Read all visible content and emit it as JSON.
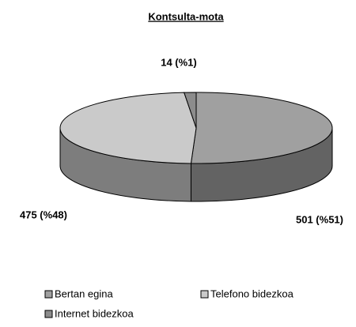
{
  "chart_data": {
    "type": "pie",
    "title": "Kontsulta-mota",
    "categories": [
      "Bertan egina",
      "Telefono bidezkoa",
      "Internet bidezkoa"
    ],
    "values": [
      501,
      475,
      14
    ],
    "value_labels": [
      "501 (%51)",
      "475 (%48)",
      "14 (%1)"
    ],
    "colors": [
      "#a0a0a0",
      "#cacaca",
      "#8c8c8c"
    ],
    "legend": "bottom"
  }
}
